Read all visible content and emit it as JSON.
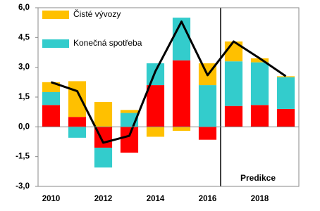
{
  "chart_data": {
    "type": "bar",
    "stacked": true,
    "categories": [
      "2010",
      null,
      "2012",
      null,
      "2014",
      null,
      "2016",
      null,
      "2018",
      null
    ],
    "series": [
      {
        "color": "#ff0000",
        "values": [
          1.1,
          0.5,
          -1.05,
          -1.3,
          2.1,
          3.35,
          -0.65,
          1.05,
          1.1,
          0.9
        ]
      },
      {
        "name": "Konečná spotřeba",
        "color": "#33cccc",
        "values": [
          0.65,
          -0.55,
          -1.0,
          0.7,
          1.1,
          2.15,
          2.1,
          2.25,
          2.15,
          1.6
        ]
      },
      {
        "name": "Čisté vývozy",
        "color": "#ffc000",
        "values": [
          0.5,
          1.8,
          1.25,
          0.15,
          -0.5,
          -0.2,
          1.1,
          1.0,
          0.2,
          0.05
        ]
      }
    ],
    "line": {
      "color": "#000000",
      "values": [
        2.25,
        1.8,
        -0.8,
        -0.45,
        2.8,
        5.3,
        2.6,
        4.3,
        3.45,
        2.55
      ]
    },
    "annotation": "Predikce",
    "ylim": [
      -3.0,
      6.0
    ],
    "yticks": [
      {
        "value": -3.0,
        "label": "-3,0"
      },
      {
        "value": -1.5,
        "label": "-1,5"
      },
      {
        "value": 0.0,
        "label": "0,0"
      },
      {
        "value": 1.5,
        "label": "1,5"
      },
      {
        "value": 3.0,
        "label": "3,0"
      },
      {
        "value": 4.5,
        "label": "4,5"
      },
      {
        "value": 6.0,
        "label": "6,0"
      }
    ]
  }
}
